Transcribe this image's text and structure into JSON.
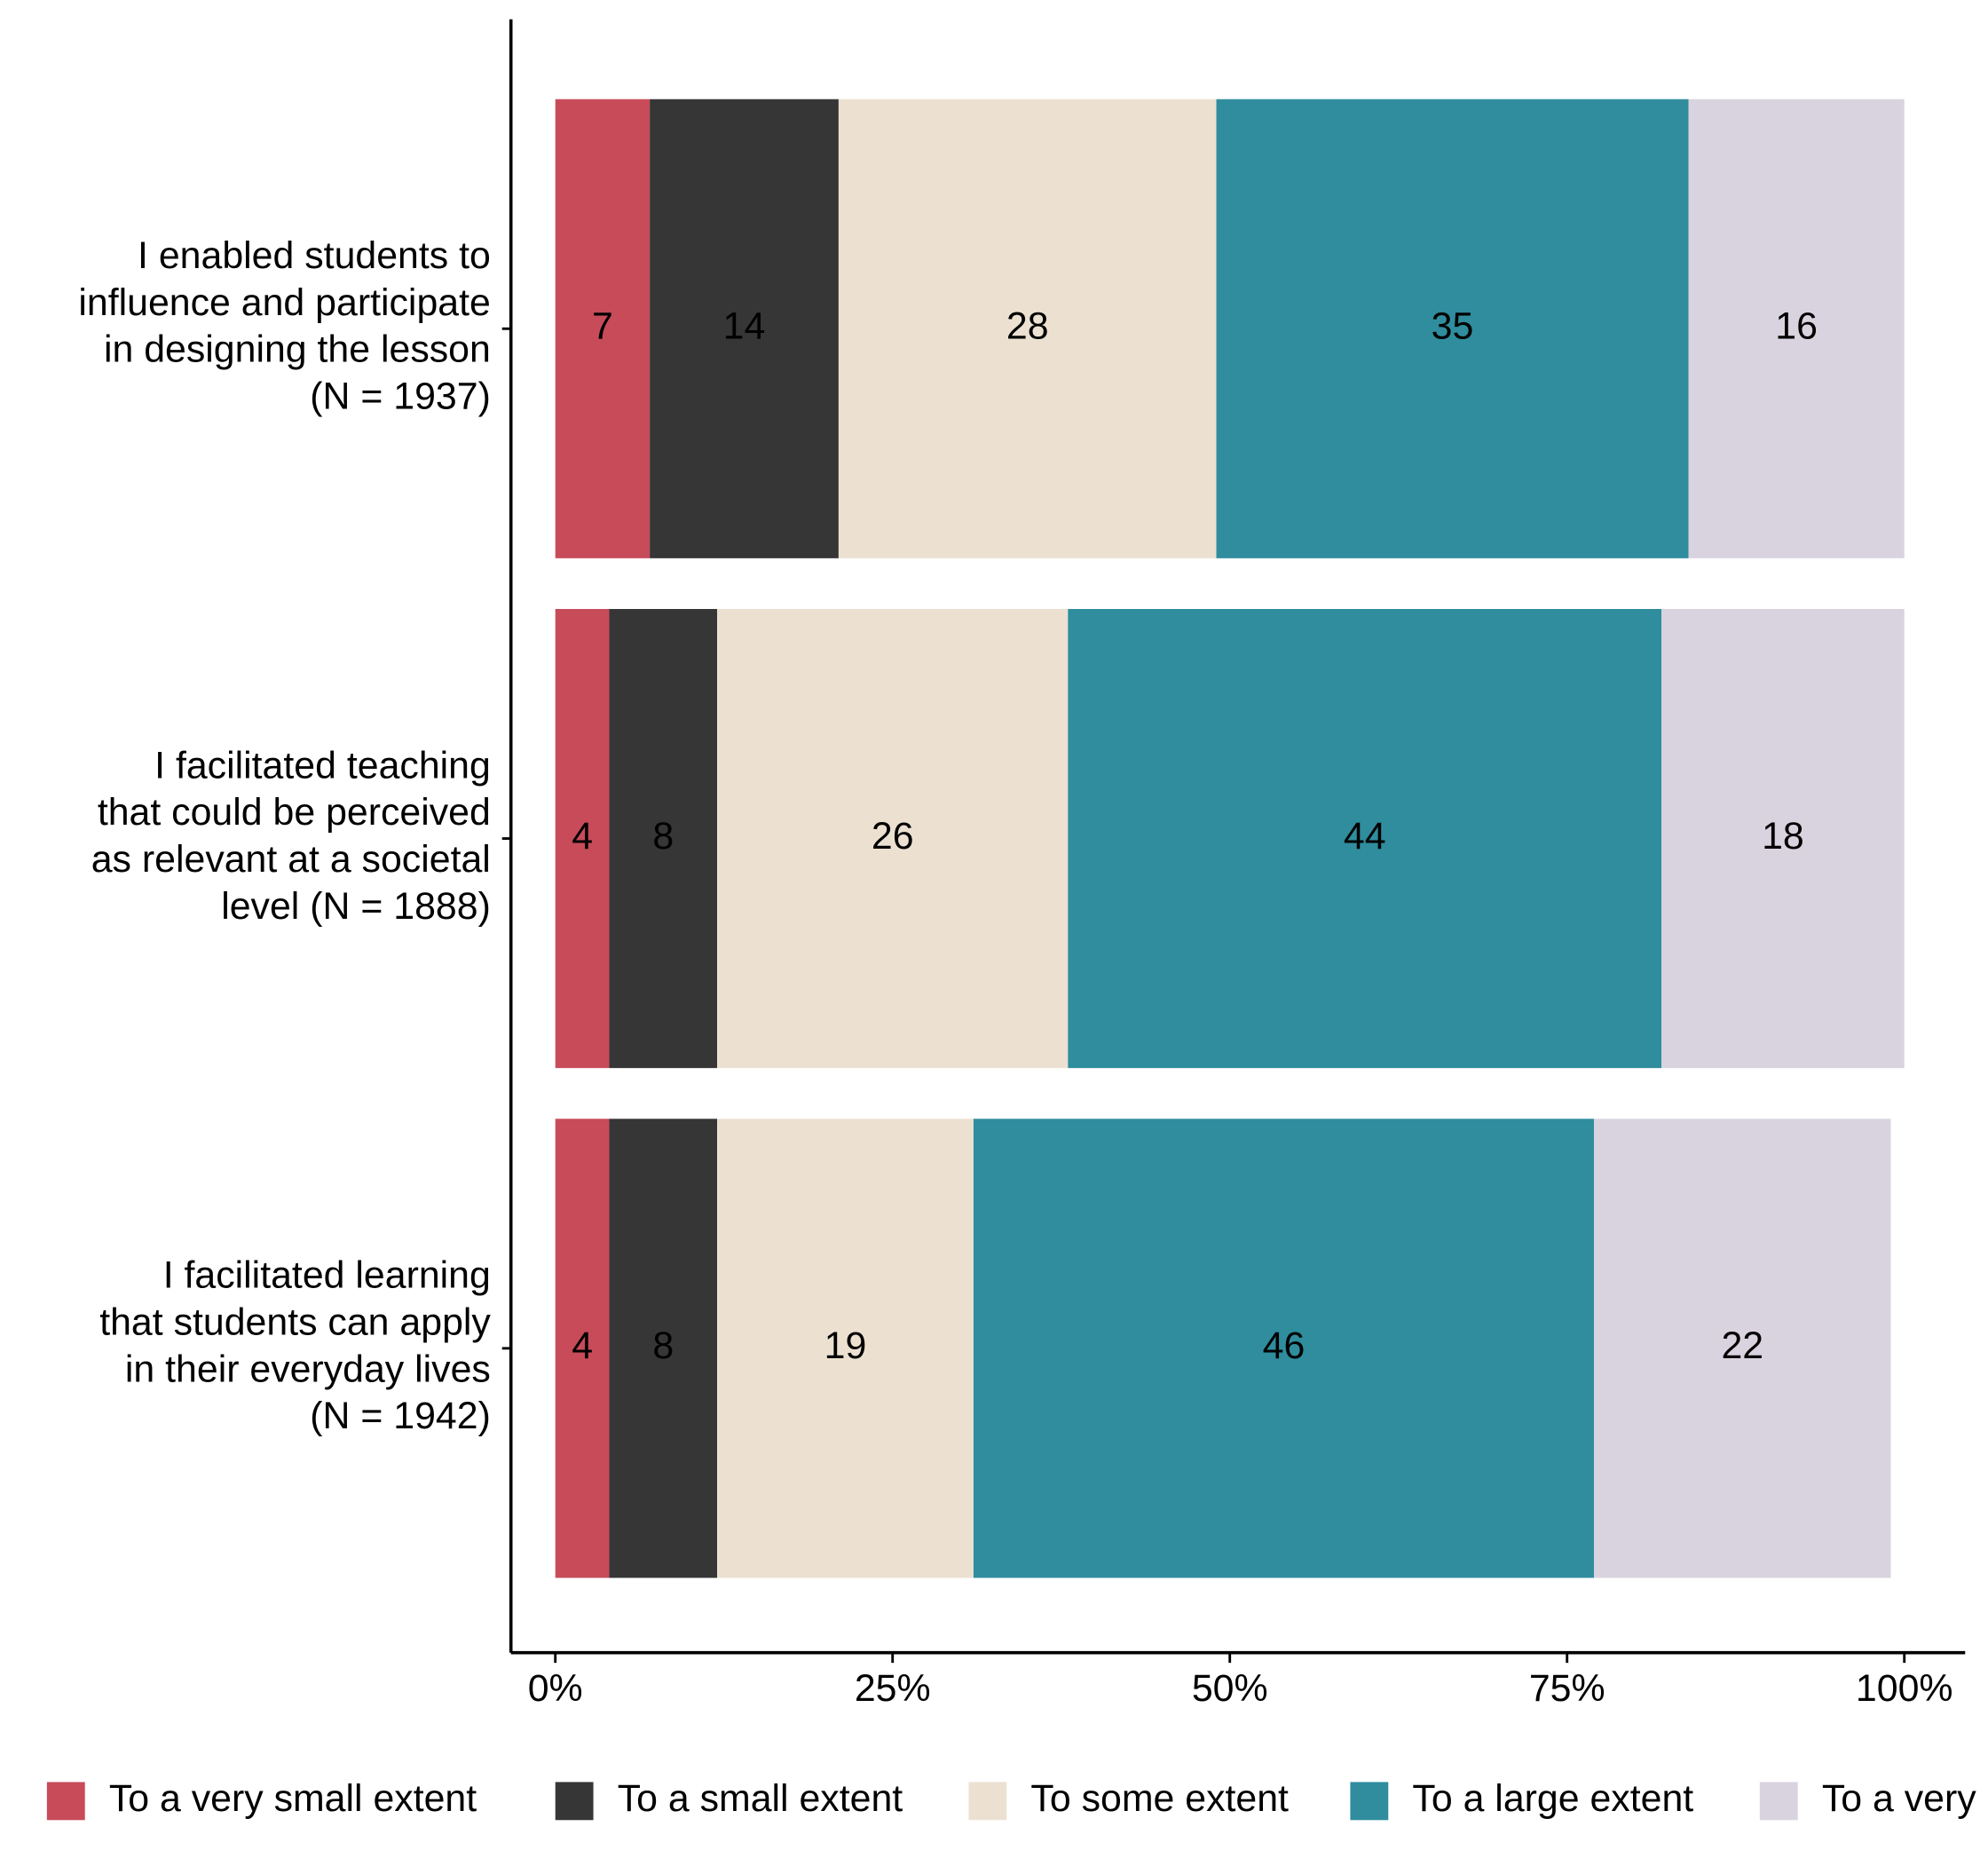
{
  "chart_data": {
    "type": "stacked-bar-horizontal",
    "categories": [
      "I enabled students to\ninfluence and participate\nin designing the lesson\n(N = 1937)",
      "I facilitated teaching\nthat could be perceived\nas relevant at a societal\nlevel (N = 1888)",
      "I facilitated learning\nthat students can apply\nin their everyday lives\n(N = 1942)"
    ],
    "series": [
      {
        "name": "To a very small extent",
        "color": "#c84b5a",
        "values": [
          7,
          4,
          4
        ]
      },
      {
        "name": "To a small extent",
        "color": "#363636",
        "values": [
          14,
          8,
          8
        ]
      },
      {
        "name": "To some extent",
        "color": "#ece1d1",
        "values": [
          28,
          26,
          19
        ]
      },
      {
        "name": "To a large extent",
        "color": "#2f8d9e",
        "values": [
          35,
          44,
          46
        ]
      },
      {
        "name": "To a very",
        "color": "#d9d3df",
        "values": [
          16,
          18,
          22
        ]
      }
    ],
    "xlim": [
      0,
      100
    ],
    "xticks": [
      {
        "value": 0,
        "label": "0%"
      },
      {
        "value": 25,
        "label": "25%"
      },
      {
        "value": 50,
        "label": "50%"
      },
      {
        "value": 75,
        "label": "75%"
      },
      {
        "value": 100,
        "label": "100%"
      }
    ],
    "legend": "bottom"
  }
}
